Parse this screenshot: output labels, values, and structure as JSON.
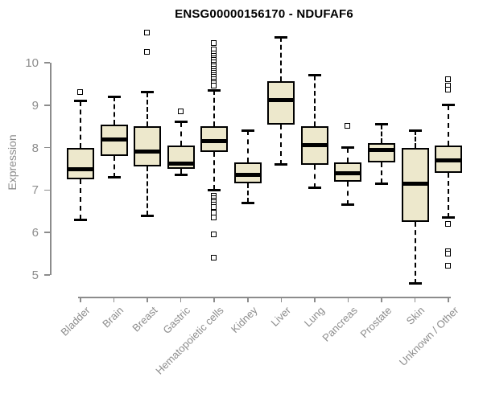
{
  "page": {
    "background": "#FFFFFF"
  },
  "chart_data": {
    "type": "boxplot",
    "title": "ENSG00000156170 - NDUFAF6",
    "ylabel": "Expression",
    "xlabel": "",
    "ylim": [
      4.6,
      10.8
    ],
    "yticks": [
      5,
      6,
      7,
      8,
      9,
      10
    ],
    "grid": false,
    "legend": false,
    "colors": {
      "box_fill": "#EDE8CC",
      "box_stroke": "#000000",
      "median": "#000000",
      "whisker": "#000000",
      "axis": "#8C8C8C",
      "tick_label": "#8C8C8C",
      "title": "#000000"
    },
    "categories": [
      "Bladder",
      "Brain",
      "Breast",
      "Gastric",
      "Hematopoietic cells",
      "Kidney",
      "Liver",
      "Lung",
      "Pancreas",
      "Prostate",
      "Skin",
      "Unknown / Other"
    ],
    "series": [
      {
        "category": "Bladder",
        "whisker_low": 6.3,
        "q1": 7.25,
        "median": 7.5,
        "q3": 8.0,
        "whisker_high": 9.1,
        "outliers": [
          9.3
        ]
      },
      {
        "category": "Brain",
        "whisker_low": 7.3,
        "q1": 7.8,
        "median": 8.2,
        "q3": 8.55,
        "whisker_high": 9.2,
        "outliers": []
      },
      {
        "category": "Breast",
        "whisker_low": 6.4,
        "q1": 7.55,
        "median": 7.9,
        "q3": 8.5,
        "whisker_high": 9.3,
        "outliers": [
          10.7,
          10.25
        ]
      },
      {
        "category": "Gastric",
        "whisker_low": 7.35,
        "q1": 7.5,
        "median": 7.62,
        "q3": 8.05,
        "whisker_high": 8.6,
        "outliers": [
          8.85
        ]
      },
      {
        "category": "Hematopoietic cells",
        "whisker_low": 7.0,
        "q1": 7.9,
        "median": 8.15,
        "q3": 8.5,
        "whisker_high": 9.35,
        "outliers": [
          10.45,
          10.3,
          10.2,
          10.15,
          10.1,
          10.05,
          10.0,
          9.95,
          9.9,
          9.85,
          9.8,
          9.75,
          9.7,
          9.65,
          9.6,
          9.55,
          9.5,
          9.45,
          6.85,
          6.8,
          6.75,
          6.7,
          6.65,
          6.6,
          6.45,
          6.35,
          5.95,
          5.4
        ]
      },
      {
        "category": "Kidney",
        "whisker_low": 6.7,
        "q1": 7.15,
        "median": 7.35,
        "q3": 7.65,
        "whisker_high": 8.4,
        "outliers": []
      },
      {
        "category": "Liver",
        "whisker_low": 7.6,
        "q1": 8.55,
        "median": 9.12,
        "q3": 9.57,
        "whisker_high": 10.6,
        "outliers": []
      },
      {
        "category": "Lung",
        "whisker_low": 7.05,
        "q1": 7.6,
        "median": 8.05,
        "q3": 8.5,
        "whisker_high": 9.7,
        "outliers": []
      },
      {
        "category": "Pancreas",
        "whisker_low": 6.65,
        "q1": 7.2,
        "median": 7.4,
        "q3": 7.65,
        "whisker_high": 8.0,
        "outliers": [
          8.5
        ]
      },
      {
        "category": "Prostate",
        "whisker_low": 7.15,
        "q1": 7.65,
        "median": 7.95,
        "q3": 8.1,
        "whisker_high": 8.55,
        "outliers": []
      },
      {
        "category": "Skin",
        "whisker_low": 4.8,
        "q1": 6.25,
        "median": 7.15,
        "q3": 8.0,
        "whisker_high": 8.4,
        "outliers": []
      },
      {
        "category": "Unknown / Other",
        "whisker_low": 6.35,
        "q1": 7.4,
        "median": 7.7,
        "q3": 8.05,
        "whisker_high": 9.0,
        "outliers": [
          9.6,
          9.45,
          9.35,
          6.2,
          5.55,
          5.5,
          5.2
        ]
      }
    ]
  }
}
